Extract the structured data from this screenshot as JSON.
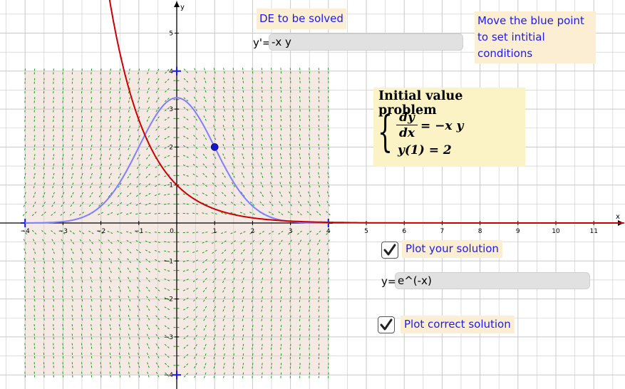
{
  "labels": {
    "de_title": "DE to be solved",
    "instruction_line1": "Move the blue point",
    "instruction_line2": "to set intitial conditions"
  },
  "de_input": {
    "prefix": "y'=",
    "value": "-x y"
  },
  "ivp": {
    "title": "Initial value problem",
    "numerator": "dy",
    "denominator": "dx",
    "rhs": "= −x y",
    "condition": "y(1) = 2"
  },
  "plot_your_solution": {
    "checked": true,
    "label": "Plot your solution"
  },
  "solution_input": {
    "prefix": "y=",
    "value": "e^(-x)"
  },
  "plot_correct_solution": {
    "checked": true,
    "label": "Plot correct solution"
  },
  "graph": {
    "x_axis_label": "x",
    "y_axis_label": "y",
    "x_ticks": [
      "−4",
      "−3",
      "−2",
      "−1",
      "0",
      "1",
      "2",
      "3",
      "4",
      "5",
      "6",
      "7",
      "8",
      "9",
      "10",
      "11"
    ],
    "y_ticks": [
      "−4",
      "−3",
      "−2",
      "−1",
      "1",
      "2",
      "3",
      "4",
      "5"
    ],
    "x_range": [
      -4.6,
      11.7
    ],
    "y_range": [
      -4.3,
      5.8
    ],
    "slope_field_region": {
      "x": [
        -4,
        4
      ],
      "y": [
        -4,
        4
      ]
    },
    "initial_point": {
      "x": 1,
      "y": 2
    },
    "colors": {
      "user_solution": "#cc0000",
      "correct_solution": "#7f7fff",
      "slope_field": "#1a9a1a",
      "region_fill": "#f5e9e3",
      "point": "#1515cc",
      "grid": "#c8c8c8"
    }
  }
}
